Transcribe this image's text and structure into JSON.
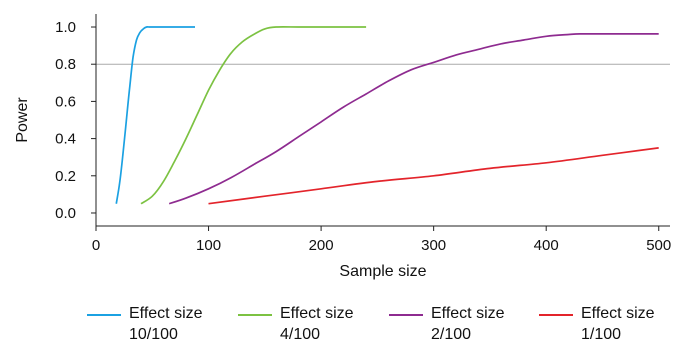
{
  "chart_data": {
    "type": "line",
    "xlabel": "Sample size",
    "ylabel": "Power",
    "xlim": [
      0,
      510
    ],
    "ylim": [
      -0.07,
      1.07
    ],
    "xticks": [
      0,
      100,
      200,
      300,
      400,
      500
    ],
    "yticks": [
      0.0,
      0.2,
      0.4,
      0.6,
      0.8,
      1.0
    ],
    "xtick_labels": [
      "0",
      "100",
      "200",
      "300",
      "400",
      "500"
    ],
    "ytick_labels": [
      "0.0",
      "0.2",
      "0.4",
      "0.6",
      "0.8",
      "1.0"
    ],
    "reference_line": {
      "y": 0.8,
      "color": "#aaaaaa"
    },
    "grid": false,
    "legend_position": "bottom",
    "series": [
      {
        "name": "Effect size\n10/100",
        "color": "#1ba1e2",
        "x": [
          18,
          21,
          24,
          27,
          30,
          33,
          36,
          39,
          42,
          45,
          48,
          55,
          65,
          75,
          88
        ],
        "y": [
          0.05,
          0.16,
          0.32,
          0.5,
          0.68,
          0.84,
          0.93,
          0.97,
          0.99,
          1.0,
          1.0,
          1.0,
          1.0,
          1.0,
          1.0
        ]
      },
      {
        "name": "Effect size\n4/100",
        "color": "#7cc242",
        "x": [
          40,
          50,
          60,
          70,
          80,
          90,
          100,
          110,
          120,
          130,
          140,
          150,
          160,
          180,
          200,
          220,
          240
        ],
        "y": [
          0.05,
          0.09,
          0.17,
          0.28,
          0.4,
          0.53,
          0.66,
          0.77,
          0.86,
          0.92,
          0.96,
          0.99,
          1.0,
          1.0,
          1.0,
          1.0,
          1.0
        ]
      },
      {
        "name": "Effect size\n2/100",
        "color": "#8e2b90",
        "x": [
          65,
          80,
          100,
          120,
          140,
          160,
          180,
          200,
          220,
          240,
          260,
          280,
          300,
          320,
          340,
          360,
          380,
          400,
          420,
          430,
          450,
          470,
          500
        ],
        "y": [
          0.05,
          0.08,
          0.13,
          0.19,
          0.26,
          0.33,
          0.41,
          0.49,
          0.57,
          0.64,
          0.71,
          0.77,
          0.81,
          0.85,
          0.88,
          0.91,
          0.93,
          0.95,
          0.96,
          0.963,
          0.963,
          0.963,
          0.963
        ]
      },
      {
        "name": "Effect size\n1/100",
        "color": "#e3242b",
        "x": [
          100,
          150,
          200,
          250,
          300,
          350,
          400,
          450,
          500
        ],
        "y": [
          0.05,
          0.09,
          0.13,
          0.17,
          0.2,
          0.24,
          0.27,
          0.31,
          0.35
        ]
      }
    ]
  }
}
